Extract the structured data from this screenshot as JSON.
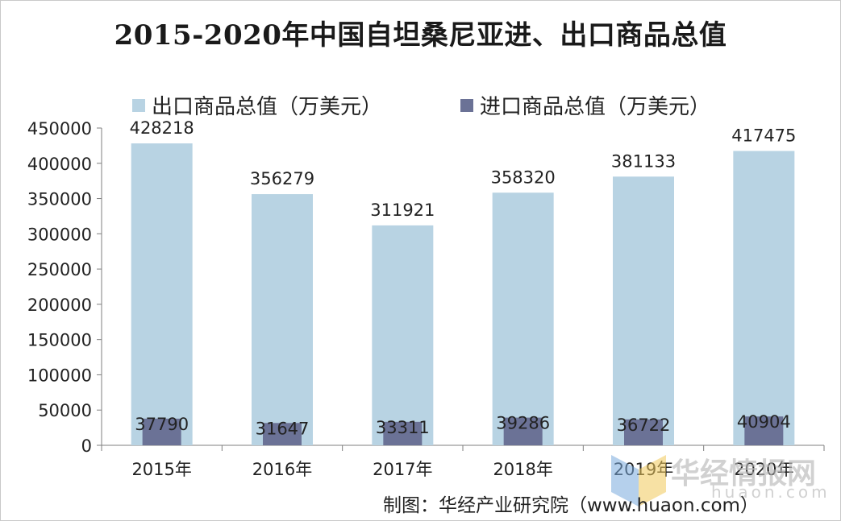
{
  "chart_data": {
    "type": "bar",
    "title": "2015-2020年中国自坦桑尼亚进、出口商品总值",
    "categories": [
      "2015年",
      "2016年",
      "2017年",
      "2018年",
      "2019年",
      "2020年"
    ],
    "series": [
      {
        "name": "出口商品总值（万美元）",
        "values": [
          428218,
          356279,
          311921,
          358320,
          381133,
          417475
        ],
        "color": "#b8d3e3"
      },
      {
        "name": "进口商品总值（万美元）",
        "values": [
          37790,
          31647,
          33311,
          39286,
          36722,
          40904
        ],
        "color": "#6b7296"
      }
    ],
    "yticks": [
      "0",
      "50000",
      "100000",
      "150000",
      "200000",
      "250000",
      "300000",
      "350000",
      "400000",
      "450000"
    ],
    "ylim": [
      0,
      450000
    ],
    "legend_position": "top",
    "grid": false
  },
  "credit": "制图：华经产业研究院（www.huaon.com）",
  "watermark": {
    "text": "华经情报网",
    "domain": "huaon.com"
  }
}
